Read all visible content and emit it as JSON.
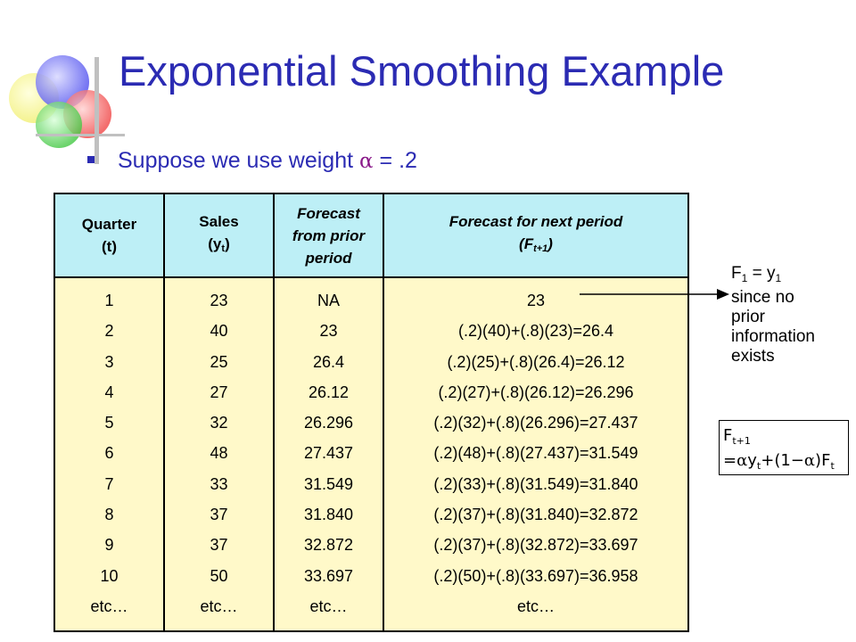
{
  "title": "Exponential Smoothing Example",
  "bullet": {
    "text": "Suppose we use weight",
    "symbol": "α",
    "equals": "=",
    "value": ".2"
  },
  "table": {
    "headers": {
      "quarter": "Quarter",
      "quarter_sub": "(t)",
      "sales": "Sales",
      "sales_paren_open": "(y",
      "sales_sub": "t",
      "sales_paren_close": ")",
      "forecast_prior": [
        "Forecast",
        "from prior",
        "period"
      ],
      "forecast_next": "Forecast for next period",
      "forecast_next_open": "(F",
      "forecast_next_sub": "t+1",
      "forecast_next_close": ")"
    },
    "quarter": [
      "1",
      "2",
      "3",
      "4",
      "5",
      "6",
      "7",
      "8",
      "9",
      "10",
      "etc…"
    ],
    "sales": [
      "23",
      "40",
      "25",
      "27",
      "32",
      "48",
      "33",
      "37",
      "37",
      "50",
      "etc…"
    ],
    "forecast_prior": [
      "NA",
      "23",
      "26.4",
      "26.12",
      "26.296",
      "27.437",
      "31.549",
      "31.840",
      "32.872",
      "33.697",
      "etc…"
    ],
    "forecast_next": [
      "23",
      "(.2)(40)+(.8)(23)=26.4",
      "(.2)(25)+(.8)(26.4)=26.12",
      "(.2)(27)+(.8)(26.12)=26.296",
      "(.2)(32)+(.8)(26.296)=27.437",
      "(.2)(48)+(.8)(27.437)=31.549",
      "(.2)(33)+(.8)(31.549)=31.840",
      "(.2)(37)+(.8)(31.840)=32.872",
      "(.2)(37)+(.8)(32.872)=33.697",
      "(.2)(50)+(.8)(33.697)=36.958",
      "etc…"
    ]
  },
  "note": {
    "f": "F",
    "f_sub": "1",
    "eq": "= y",
    "y_sub": "1",
    "lines": [
      "since no",
      "prior",
      "information",
      "exists"
    ]
  },
  "formula": {
    "lhs": "F",
    "lhs_sub": "t+1",
    "eq": "=",
    "alpha": "α",
    "y": "y",
    "y_sub": "t",
    "plus": "+",
    "paren": "(1−",
    "alpha2": "α",
    "paren_close": ")",
    "f": "F",
    "f_sub": "t"
  },
  "colors": {
    "title": "#2b2bb3",
    "header_bg": "#bdeff6",
    "body_bg": "#fff9c9",
    "accent_symbol": "#8a1a8a"
  },
  "icons": [
    "decorative-circles-icon",
    "bullet-square-icon",
    "arrow-icon"
  ]
}
